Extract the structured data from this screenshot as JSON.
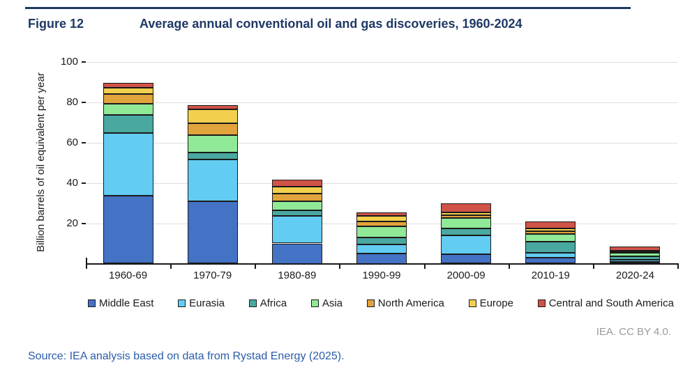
{
  "figure": {
    "label": "Figure 12",
    "title": "Average annual conventional oil and gas discoveries, 1960-2024"
  },
  "chart_data": {
    "type": "bar",
    "stacked": true,
    "title": "Average annual conventional oil and gas discoveries, 1960-2024",
    "ylabel": "Billion barrels of oil equivalent per year",
    "xlabel": "",
    "categories": [
      "1960-69",
      "1970-79",
      "1980-89",
      "1990-99",
      "2000-09",
      "2010-19",
      "2020-24"
    ],
    "series": [
      {
        "name": "Middle East",
        "color": "#4472C4",
        "values": [
          33.5,
          31,
          10,
          5,
          4.5,
          3,
          1
        ]
      },
      {
        "name": "Eurasia",
        "color": "#62CCF3",
        "values": [
          31,
          20.5,
          13.5,
          4.5,
          9.5,
          2.5,
          1
        ]
      },
      {
        "name": "Africa",
        "color": "#49A8A0",
        "values": [
          9,
          3.5,
          3,
          3.5,
          3.5,
          5.5,
          1.5
        ]
      },
      {
        "name": "Asia",
        "color": "#8FE997",
        "values": [
          5.5,
          8.5,
          4.5,
          5.5,
          5,
          3.5,
          2
        ]
      },
      {
        "name": "North America",
        "color": "#E1A33B",
        "values": [
          5,
          6,
          3.5,
          2.5,
          1.5,
          1.5,
          0.5
        ]
      },
      {
        "name": "Europe",
        "color": "#F2D04E",
        "values": [
          3,
          7,
          3.5,
          2.5,
          1.5,
          1.5,
          0.5
        ]
      },
      {
        "name": "Central and South America",
        "color": "#D05348",
        "values": [
          2.5,
          2,
          3.5,
          2,
          4.5,
          3.5,
          2
        ]
      }
    ],
    "ylim": [
      0,
      100
    ],
    "yticks": [
      20,
      40,
      60,
      80,
      100
    ],
    "grid": true,
    "legend_position": "bottom"
  },
  "attribution": "IEA. CC BY 4.0.",
  "source": "Source: IEA analysis based on data from Rystad Energy (2025)."
}
